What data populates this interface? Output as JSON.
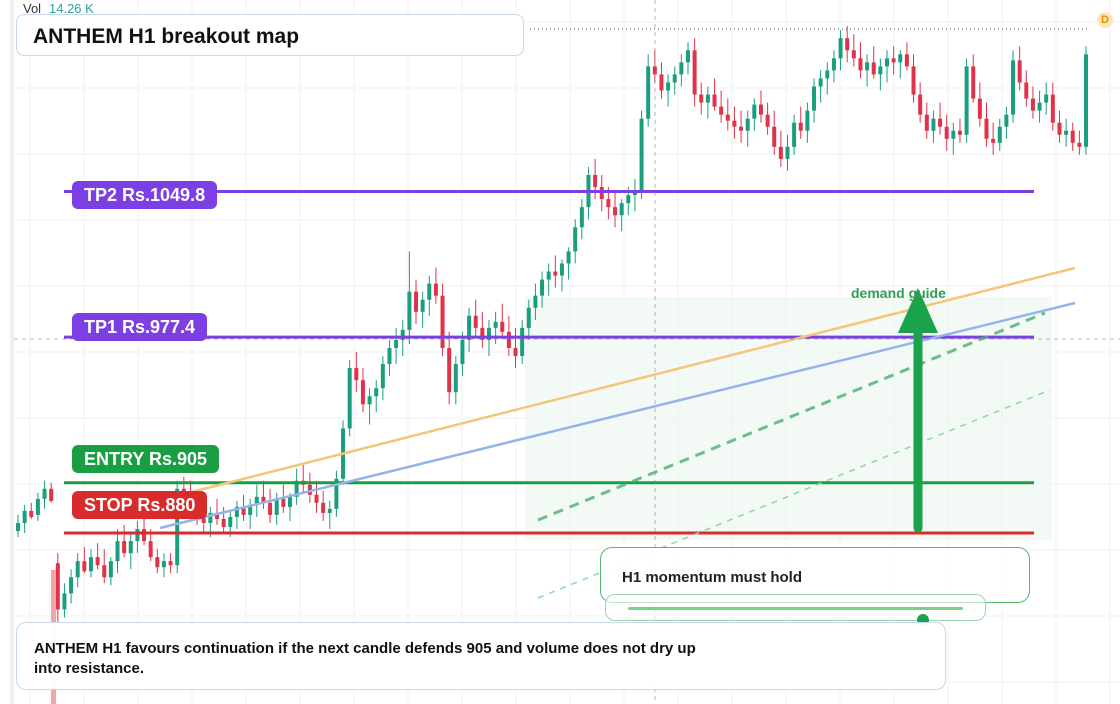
{
  "header": {
    "vol_label": "Vol",
    "vol_value": "14.26 K",
    "title": "ANTHEM H1 breakout map",
    "interval_badge": "D"
  },
  "levels": {
    "tp2": {
      "label": "TP2 Rs.1049.8",
      "price": 1049.8,
      "color": "#7b3fe4"
    },
    "tp1": {
      "label": "TP1 Rs.977.4",
      "price": 977.4,
      "color": "#7b3fe4"
    },
    "entry": {
      "label": "ENTRY Rs.905",
      "price": 905,
      "color": "#1a9e44"
    },
    "stop": {
      "label": "STOP Rs.880",
      "price": 880,
      "color": "#d92b2b"
    }
  },
  "annotations": {
    "demand_guide": "demand guide",
    "momentum": "H1 momentum must hold",
    "momentum_level": 0.88,
    "note": "ANTHEM H1 favours continuation if the next candle defends 905 and volume does not dry up into resistance."
  },
  "colors": {
    "up": "#1a9e7e",
    "down": "#e0334a",
    "trend_orange": "#f5c57a",
    "trend_blue": "#94b4ec",
    "guide_green": "#4caf6e",
    "arrow_green": "#1aa34a"
  },
  "chart_data": {
    "type": "candlestick",
    "title": "ANTHEM H1 breakout map",
    "ylim": [
      795,
      1145
    ],
    "series": [
      {
        "values": [
          [
            881,
            889,
            878,
            885
          ],
          [
            885,
            894,
            880,
            891
          ],
          [
            891,
            895,
            887,
            888
          ],
          [
            889,
            900,
            886,
            897
          ],
          [
            897,
            906,
            892,
            902
          ],
          [
            902,
            905,
            895,
            896
          ],
          [
            865,
            870,
            835,
            842
          ],
          [
            842,
            855,
            838,
            850
          ],
          [
            850,
            862,
            845,
            858
          ],
          [
            858,
            870,
            853,
            866
          ],
          [
            866,
            873,
            860,
            861
          ],
          [
            861,
            872,
            858,
            868
          ],
          [
            868,
            875,
            862,
            864
          ],
          [
            864,
            872,
            855,
            858
          ],
          [
            858,
            868,
            854,
            866
          ],
          [
            866,
            882,
            860,
            876
          ],
          [
            876,
            884,
            868,
            870
          ],
          [
            870,
            880,
            862,
            876
          ],
          [
            876,
            886,
            870,
            882
          ],
          [
            882,
            889,
            874,
            876
          ],
          [
            876,
            882,
            866,
            868
          ],
          [
            868,
            872,
            860,
            863
          ],
          [
            863,
            870,
            858,
            866
          ],
          [
            866,
            870,
            860,
            864
          ],
          [
            864,
            906,
            860,
            902
          ],
          [
            902,
            908,
            895,
            898
          ],
          [
            898,
            906,
            890,
            893
          ],
          [
            893,
            901,
            884,
            888
          ],
          [
            888,
            895,
            880,
            885
          ],
          [
            885,
            893,
            878,
            890
          ],
          [
            890,
            897,
            884,
            887
          ],
          [
            887,
            893,
            880,
            883
          ],
          [
            883,
            891,
            878,
            888
          ],
          [
            888,
            896,
            882,
            893
          ],
          [
            893,
            899,
            886,
            889
          ],
          [
            889,
            897,
            882,
            894
          ],
          [
            894,
            904,
            888,
            898
          ],
          [
            898,
            906,
            892,
            895
          ],
          [
            895,
            902,
            885,
            889
          ],
          [
            889,
            900,
            884,
            897
          ],
          [
            897,
            904,
            890,
            893
          ],
          [
            893,
            900,
            886,
            898
          ],
          [
            898,
            912,
            894,
            906
          ],
          [
            906,
            914,
            900,
            904
          ],
          [
            904,
            910,
            895,
            899
          ],
          [
            899,
            906,
            890,
            895
          ],
          [
            895,
            901,
            886,
            890
          ],
          [
            890,
            896,
            882,
            892
          ],
          [
            892,
            911,
            888,
            907
          ],
          [
            907,
            936,
            904,
            932
          ],
          [
            932,
            966,
            928,
            962
          ],
          [
            962,
            970,
            950,
            956
          ],
          [
            956,
            962,
            940,
            944
          ],
          [
            944,
            952,
            934,
            948
          ],
          [
            948,
            956,
            940,
            952
          ],
          [
            952,
            968,
            946,
            964
          ],
          [
            964,
            976,
            958,
            972
          ],
          [
            972,
            982,
            964,
            976
          ],
          [
            976,
            986,
            968,
            981
          ],
          [
            981,
            1020,
            974,
            1000
          ],
          [
            1000,
            1006,
            984,
            990
          ],
          [
            990,
            1000,
            982,
            996
          ],
          [
            996,
            1008,
            988,
            1004
          ],
          [
            1004,
            1012,
            994,
            998
          ],
          [
            998,
            1004,
            968,
            972
          ],
          [
            972,
            980,
            944,
            950
          ],
          [
            950,
            968,
            944,
            964
          ],
          [
            964,
            980,
            958,
            976
          ],
          [
            976,
            992,
            970,
            988
          ],
          [
            988,
            996,
            978,
            982
          ],
          [
            982,
            990,
            972,
            976
          ],
          [
            976,
            986,
            968,
            982
          ],
          [
            982,
            990,
            974,
            985
          ],
          [
            985,
            994,
            978,
            980
          ],
          [
            980,
            988,
            968,
            972
          ],
          [
            972,
            982,
            962,
            968
          ],
          [
            968,
            986,
            964,
            982
          ],
          [
            982,
            996,
            976,
            992
          ],
          [
            992,
            1004,
            986,
            998
          ],
          [
            998,
            1010,
            992,
            1006
          ],
          [
            1006,
            1014,
            998,
            1010
          ],
          [
            1010,
            1018,
            1002,
            1008
          ],
          [
            1008,
            1016,
            1000,
            1014
          ],
          [
            1014,
            1022,
            1006,
            1020
          ],
          [
            1020,
            1036,
            1014,
            1032
          ],
          [
            1032,
            1046,
            1026,
            1042
          ],
          [
            1042,
            1062,
            1036,
            1058
          ],
          [
            1058,
            1066,
            1046,
            1052
          ],
          [
            1052,
            1058,
            1040,
            1046
          ],
          [
            1046,
            1052,
            1036,
            1042
          ],
          [
            1042,
            1050,
            1032,
            1038
          ],
          [
            1038,
            1046,
            1030,
            1044
          ],
          [
            1044,
            1052,
            1038,
            1048
          ],
          [
            1048,
            1056,
            1040,
            1050
          ],
          [
            1050,
            1090,
            1046,
            1086
          ],
          [
            1086,
            1118,
            1082,
            1112
          ],
          [
            1112,
            1120,
            1104,
            1108
          ],
          [
            1108,
            1114,
            1096,
            1100
          ],
          [
            1100,
            1108,
            1092,
            1104
          ],
          [
            1104,
            1112,
            1098,
            1108
          ],
          [
            1108,
            1118,
            1102,
            1114
          ],
          [
            1114,
            1124,
            1108,
            1120
          ],
          [
            1120,
            1126,
            1092,
            1098
          ],
          [
            1098,
            1104,
            1088,
            1094
          ],
          [
            1094,
            1102,
            1086,
            1098
          ],
          [
            1098,
            1106,
            1090,
            1092
          ],
          [
            1092,
            1100,
            1084,
            1088
          ],
          [
            1088,
            1096,
            1080,
            1085
          ],
          [
            1085,
            1092,
            1076,
            1082
          ],
          [
            1082,
            1090,
            1074,
            1080
          ],
          [
            1080,
            1090,
            1072,
            1086
          ],
          [
            1086,
            1096,
            1080,
            1093
          ],
          [
            1093,
            1100,
            1084,
            1088
          ],
          [
            1088,
            1094,
            1078,
            1082
          ],
          [
            1082,
            1090,
            1068,
            1072
          ],
          [
            1072,
            1080,
            1062,
            1066
          ],
          [
            1066,
            1078,
            1060,
            1072
          ],
          [
            1072,
            1088,
            1068,
            1084
          ],
          [
            1084,
            1092,
            1076,
            1080
          ],
          [
            1080,
            1094,
            1074,
            1090
          ],
          [
            1090,
            1106,
            1084,
            1102
          ],
          [
            1102,
            1110,
            1094,
            1106
          ],
          [
            1106,
            1114,
            1098,
            1110
          ],
          [
            1110,
            1120,
            1104,
            1116
          ],
          [
            1116,
            1130,
            1110,
            1126
          ],
          [
            1126,
            1132,
            1114,
            1120
          ],
          [
            1120,
            1128,
            1112,
            1116
          ],
          [
            1116,
            1124,
            1106,
            1110
          ],
          [
            1110,
            1118,
            1102,
            1114
          ],
          [
            1114,
            1122,
            1106,
            1108
          ],
          [
            1108,
            1116,
            1100,
            1112
          ],
          [
            1112,
            1120,
            1104,
            1116
          ],
          [
            1116,
            1122,
            1108,
            1114
          ],
          [
            1114,
            1120,
            1106,
            1118
          ],
          [
            1118,
            1124,
            1110,
            1112
          ],
          [
            1112,
            1118,
            1094,
            1098
          ],
          [
            1098,
            1104,
            1084,
            1088
          ],
          [
            1088,
            1094,
            1076,
            1080
          ],
          [
            1080,
            1090,
            1074,
            1086
          ],
          [
            1086,
            1094,
            1078,
            1082
          ],
          [
            1082,
            1088,
            1070,
            1076
          ],
          [
            1076,
            1084,
            1068,
            1080
          ],
          [
            1080,
            1086,
            1074,
            1078
          ],
          [
            1078,
            1116,
            1074,
            1112
          ],
          [
            1112,
            1118,
            1094,
            1096
          ],
          [
            1096,
            1104,
            1082,
            1086
          ],
          [
            1086,
            1094,
            1072,
            1076
          ],
          [
            1076,
            1084,
            1068,
            1074
          ],
          [
            1074,
            1086,
            1070,
            1082
          ],
          [
            1082,
            1092,
            1076,
            1088
          ],
          [
            1088,
            1120,
            1084,
            1115
          ],
          [
            1115,
            1122,
            1100,
            1104
          ],
          [
            1104,
            1110,
            1092,
            1096
          ],
          [
            1096,
            1102,
            1086,
            1090
          ],
          [
            1090,
            1100,
            1084,
            1094
          ],
          [
            1094,
            1104,
            1088,
            1098
          ],
          [
            1098,
            1104,
            1080,
            1084
          ],
          [
            1084,
            1090,
            1074,
            1078
          ],
          [
            1078,
            1086,
            1072,
            1080
          ],
          [
            1080,
            1084,
            1070,
            1074
          ],
          [
            1074,
            1080,
            1068,
            1072
          ],
          [
            1072,
            1122,
            1068,
            1118
          ]
        ]
      }
    ]
  }
}
